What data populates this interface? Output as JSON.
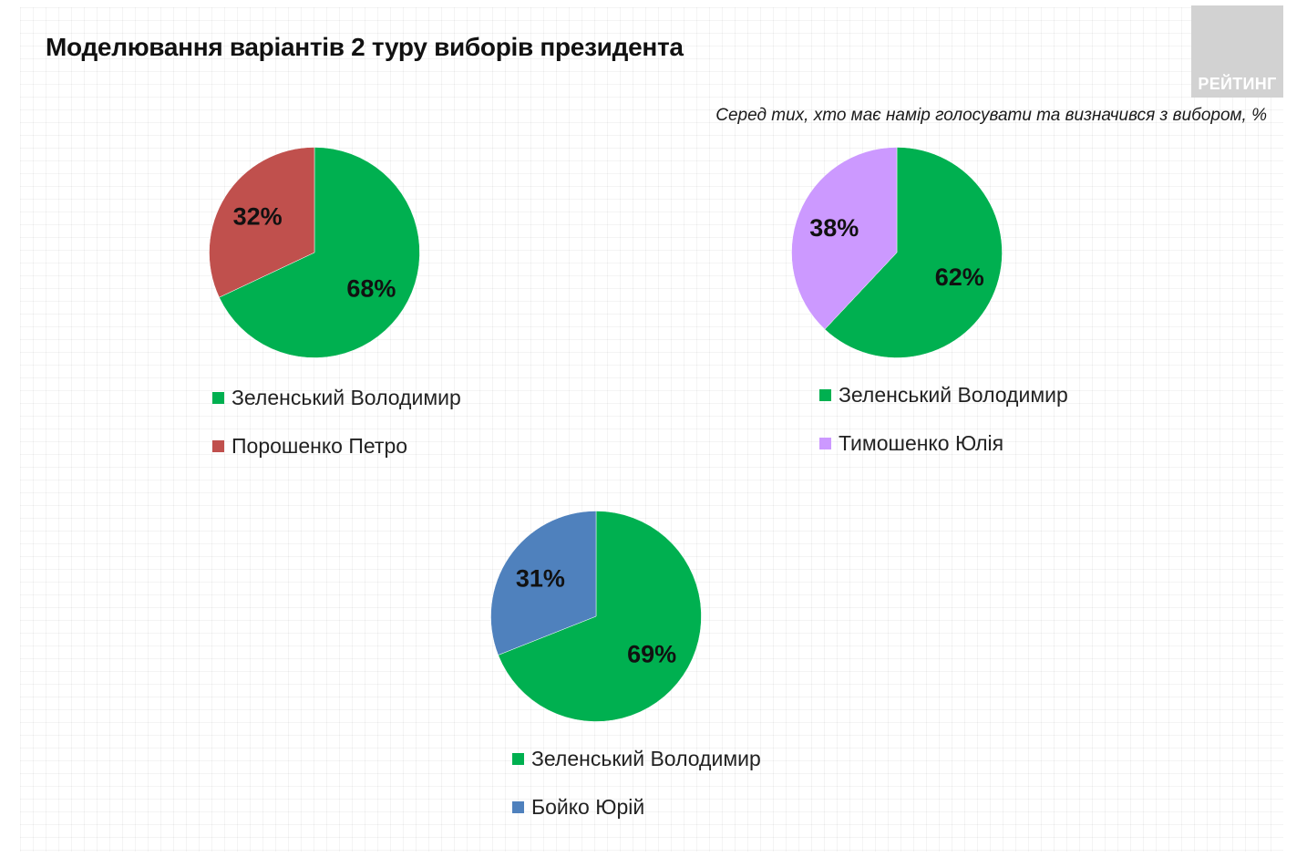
{
  "title": "Моделювання варіантів 2 туру виборів президента",
  "subtitle": "Серед тих, хто має намір голосувати  та визначився з вибором, %",
  "logo": {
    "text": "РЕЙТИНГ",
    "color": "#d2d2d2"
  },
  "chart_data": [
    {
      "type": "pie",
      "slices": [
        {
          "name": "Зеленський Володимир",
          "value": 68,
          "label": "68%",
          "color": "#00b050"
        },
        {
          "name": "Порошенко Петро",
          "value": 32,
          "label": "32%",
          "color": "#c0504d"
        }
      ],
      "legend": [
        "Зеленський Володимир",
        "Порошенко Петро"
      ],
      "legend_position": "bottom"
    },
    {
      "type": "pie",
      "slices": [
        {
          "name": "Зеленський Володимир",
          "value": 62,
          "label": "62%",
          "color": "#00b050"
        },
        {
          "name": "Тимошенко Юлія",
          "value": 38,
          "label": "38%",
          "color": "#cc99ff"
        }
      ],
      "legend": [
        "Зеленський Володимир",
        "Тимошенко Юлія"
      ],
      "legend_position": "bottom"
    },
    {
      "type": "pie",
      "slices": [
        {
          "name": "Зеленський Володимир",
          "value": 69,
          "label": "69%",
          "color": "#00b050"
        },
        {
          "name": "Бойко Юрій",
          "value": 31,
          "label": "31%",
          "color": "#4f81bd"
        }
      ],
      "legend": [
        "Зеленський Володимир",
        "Бойко Юрій"
      ],
      "legend_position": "bottom"
    }
  ]
}
